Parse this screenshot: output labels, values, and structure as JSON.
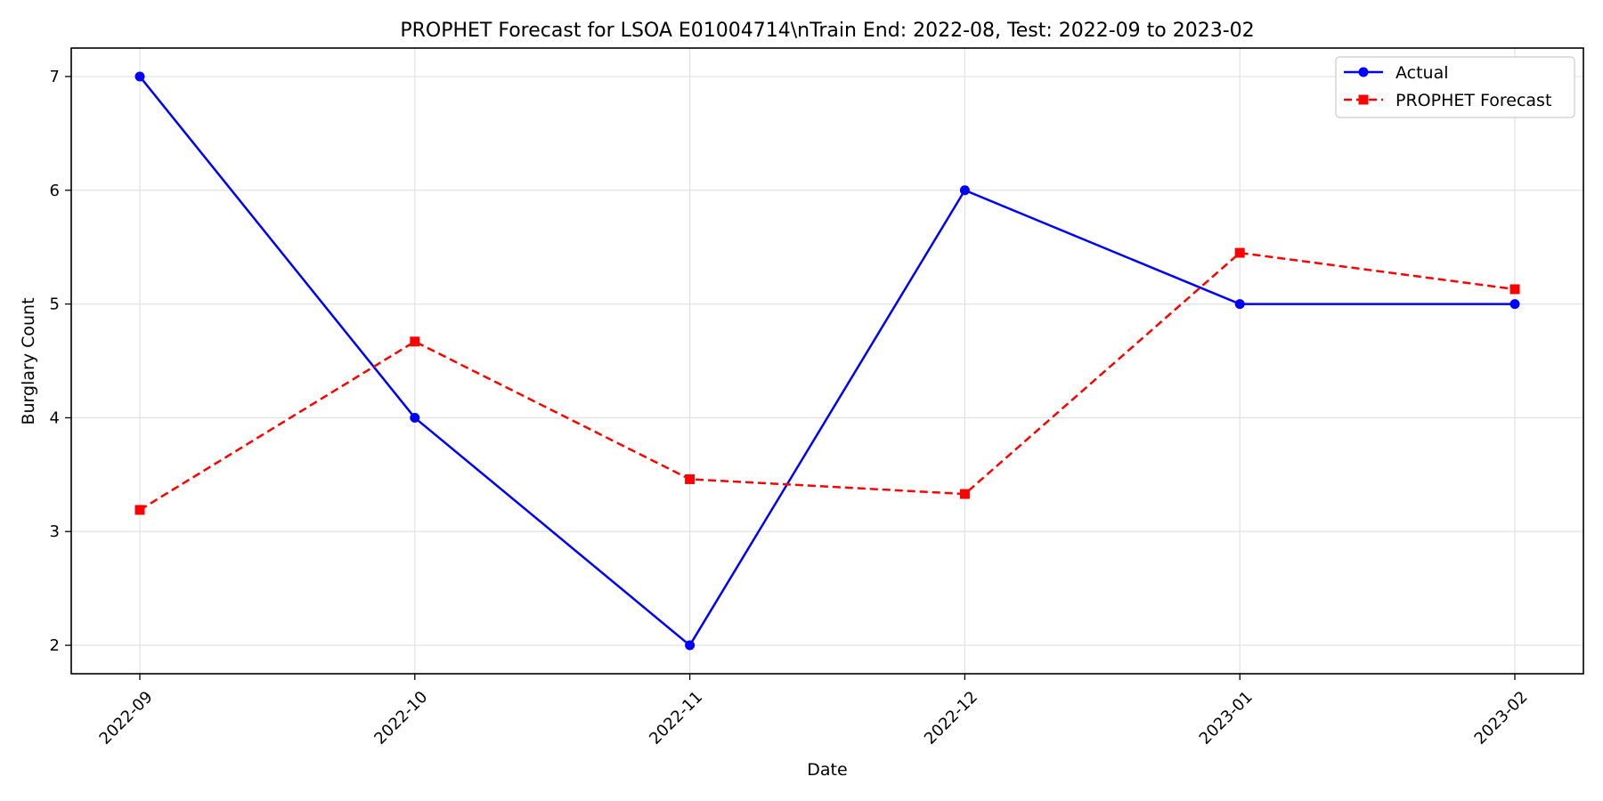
{
  "chart_data": {
    "type": "line",
    "title": "PROPHET Forecast for LSOA E01004714\\nTrain End: 2022-08, Test: 2022-09 to 2023-02",
    "xlabel": "Date",
    "ylabel": "Burglary Count",
    "x": [
      "2022-09",
      "2022-10",
      "2022-11",
      "2022-12",
      "2023-01",
      "2023-02"
    ],
    "ylim": [
      1.75,
      7.25
    ],
    "yticks": [
      2,
      3,
      4,
      5,
      6,
      7
    ],
    "grid": true,
    "legend_position": "top-right",
    "series": [
      {
        "name": "Actual",
        "values": [
          7,
          4,
          2,
          6,
          5,
          5
        ],
        "color": "#0000ff",
        "line_style": "solid",
        "marker": "circle"
      },
      {
        "name": "PROPHET Forecast",
        "values": [
          3.19,
          4.67,
          3.46,
          3.33,
          5.45,
          5.13
        ],
        "color": "#ff0000",
        "line_style": "dashed",
        "marker": "square"
      }
    ]
  }
}
